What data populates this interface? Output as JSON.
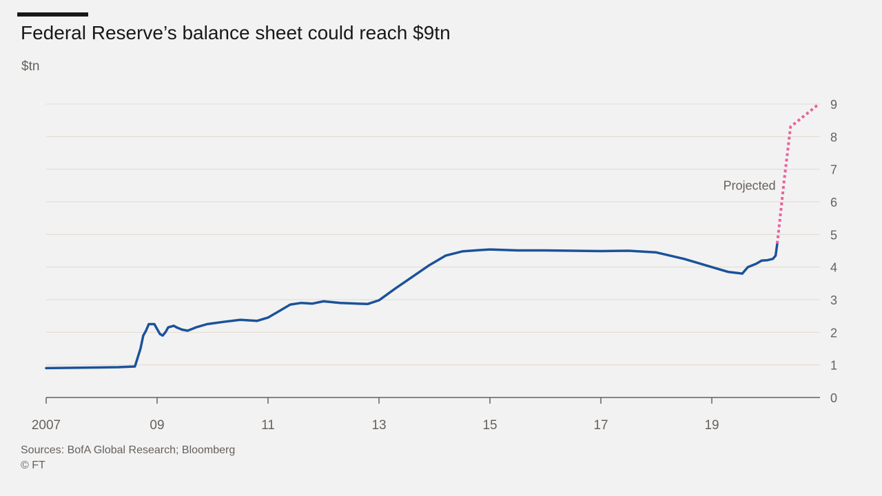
{
  "title": "Federal Reserve’s balance sheet could reach $9tn",
  "unit": "$tn",
  "source": "Sources: BofA Global Research; Bloomberg",
  "copyright": "© FT",
  "colors": {
    "actual": "#1b5299",
    "projected": "#e8639c",
    "grid": "#e2d8d0",
    "axis": "#66605c",
    "text": "#66605c",
    "background": "#f2f2f2"
  },
  "chart_data": {
    "type": "line",
    "title": "Federal Reserve’s balance sheet could reach $9tn",
    "ylabel": "$tn",
    "xlabel": "",
    "xlim": [
      2007.0,
      2020.95
    ],
    "ylim": [
      0,
      9
    ],
    "y_ticks": [
      0,
      1,
      2,
      3,
      4,
      5,
      6,
      7,
      8,
      9
    ],
    "y_axis_side": "right",
    "x_ticks": [
      {
        "value": 2007,
        "label": "2007"
      },
      {
        "value": 2009,
        "label": "09"
      },
      {
        "value": 2011,
        "label": "11"
      },
      {
        "value": 2013,
        "label": "13"
      },
      {
        "value": 2015,
        "label": "15"
      },
      {
        "value": 2017,
        "label": "17"
      },
      {
        "value": 2019,
        "label": "19"
      }
    ],
    "grid": "horizontal",
    "annotations": [
      {
        "text": "Projected",
        "series": "projected"
      }
    ],
    "series": [
      {
        "key": "actual",
        "style": "solid",
        "points": [
          [
            2007.0,
            0.9
          ],
          [
            2007.5,
            0.91
          ],
          [
            2007.9,
            0.92
          ],
          [
            2008.3,
            0.93
          ],
          [
            2008.6,
            0.95
          ],
          [
            2008.7,
            1.5
          ],
          [
            2008.75,
            1.9
          ],
          [
            2008.8,
            2.05
          ],
          [
            2008.85,
            2.25
          ],
          [
            2008.95,
            2.25
          ],
          [
            2009.0,
            2.1
          ],
          [
            2009.05,
            1.95
          ],
          [
            2009.1,
            1.9
          ],
          [
            2009.15,
            2.0
          ],
          [
            2009.2,
            2.15
          ],
          [
            2009.3,
            2.2
          ],
          [
            2009.35,
            2.15
          ],
          [
            2009.45,
            2.08
          ],
          [
            2009.55,
            2.05
          ],
          [
            2009.7,
            2.15
          ],
          [
            2009.9,
            2.25
          ],
          [
            2010.2,
            2.32
          ],
          [
            2010.5,
            2.38
          ],
          [
            2010.8,
            2.35
          ],
          [
            2011.0,
            2.45
          ],
          [
            2011.2,
            2.65
          ],
          [
            2011.4,
            2.85
          ],
          [
            2011.6,
            2.9
          ],
          [
            2011.8,
            2.88
          ],
          [
            2012.0,
            2.95
          ],
          [
            2012.3,
            2.9
          ],
          [
            2012.6,
            2.88
          ],
          [
            2012.8,
            2.87
          ],
          [
            2013.0,
            2.98
          ],
          [
            2013.3,
            3.35
          ],
          [
            2013.6,
            3.7
          ],
          [
            2013.9,
            4.05
          ],
          [
            2014.2,
            4.35
          ],
          [
            2014.5,
            4.48
          ],
          [
            2014.8,
            4.52
          ],
          [
            2015.0,
            4.54
          ],
          [
            2015.5,
            4.51
          ],
          [
            2016.0,
            4.51
          ],
          [
            2016.5,
            4.5
          ],
          [
            2017.0,
            4.49
          ],
          [
            2017.5,
            4.5
          ],
          [
            2018.0,
            4.45
          ],
          [
            2018.5,
            4.25
          ],
          [
            2019.0,
            4.0
          ],
          [
            2019.3,
            3.85
          ],
          [
            2019.55,
            3.8
          ],
          [
            2019.65,
            4.0
          ],
          [
            2019.8,
            4.1
          ],
          [
            2019.9,
            4.2
          ],
          [
            2020.0,
            4.21
          ],
          [
            2020.1,
            4.25
          ],
          [
            2020.15,
            4.35
          ],
          [
            2020.18,
            4.72
          ]
        ]
      },
      {
        "key": "projected",
        "style": "dotted",
        "points": [
          [
            2020.18,
            4.72
          ],
          [
            2020.3,
            6.6
          ],
          [
            2020.42,
            8.3
          ],
          [
            2020.93,
            9.0
          ]
        ]
      }
    ]
  }
}
